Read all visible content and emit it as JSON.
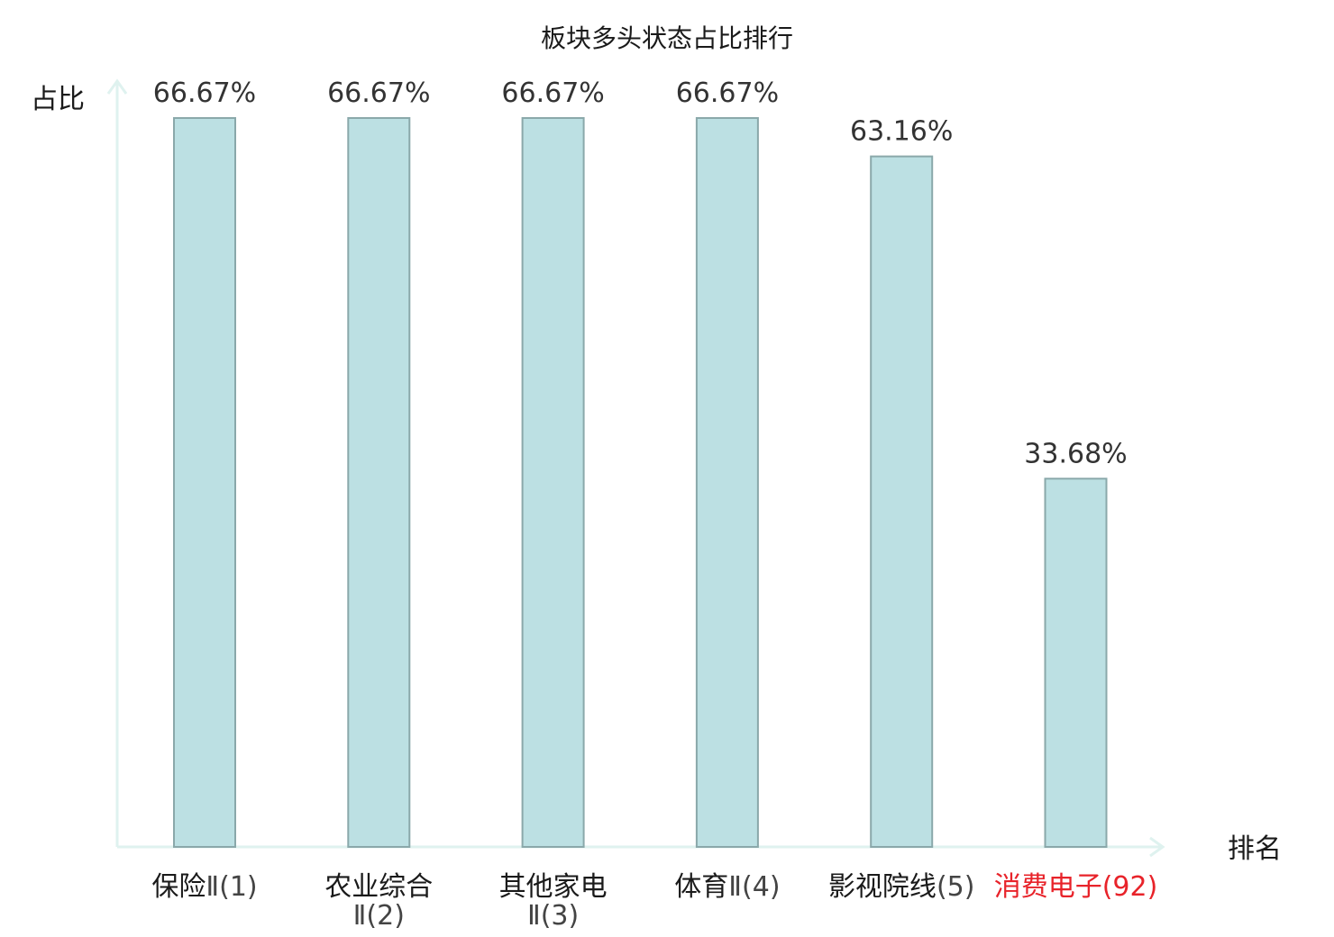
{
  "chart_data": {
    "type": "bar",
    "title": "板块多头状态占比排行",
    "ylabel": "占比",
    "xlabel": "排名",
    "ylim": [
      0,
      70
    ],
    "grid": false,
    "categories": [
      {
        "lines": [
          {
            "main": "保险",
            "suffix": "Ⅱ(1)"
          }
        ],
        "highlight": false
      },
      {
        "lines": [
          {
            "main": "农业综合",
            "suffix": ""
          },
          {
            "main": "",
            "suffix": "Ⅱ(2)"
          }
        ],
        "highlight": false
      },
      {
        "lines": [
          {
            "main": "其他家电",
            "suffix": ""
          },
          {
            "main": "",
            "suffix": "Ⅱ(3)"
          }
        ],
        "highlight": false
      },
      {
        "lines": [
          {
            "main": "体育",
            "suffix": "Ⅱ(4)"
          }
        ],
        "highlight": false
      },
      {
        "lines": [
          {
            "main": "影视院线",
            "suffix": "(5)"
          }
        ],
        "highlight": false
      },
      {
        "lines": [
          {
            "main": "消费电子",
            "suffix": "(92)"
          }
        ],
        "highlight": true
      }
    ],
    "values": [
      66.67,
      66.67,
      66.67,
      66.67,
      63.16,
      33.68
    ],
    "value_labels": [
      "66.67%",
      "66.67%",
      "66.67%",
      "66.67%",
      "63.16%",
      "33.68%"
    ],
    "colors": {
      "bar_fill": "#bce0e3",
      "bar_stroke": "#8aa8aa",
      "axis": "#dff2ef",
      "highlight": "#e8232a"
    }
  }
}
